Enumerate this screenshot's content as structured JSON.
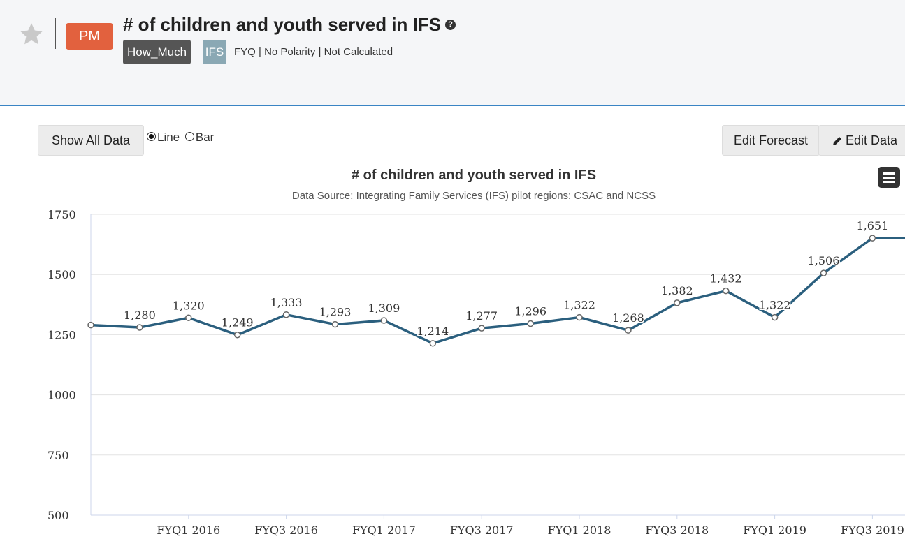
{
  "header": {
    "pm_badge": "PM",
    "title": "# of children and youth served in IFS",
    "tag_how_much": "How_Much",
    "tag_ifs": "IFS",
    "meta": "FYQ | No Polarity | Not Calculated"
  },
  "toolbar": {
    "show_all_label": "Show All Data",
    "radio_line": "Line",
    "radio_bar": "Bar",
    "selected": "Line",
    "edit_forecast_label": "Edit Forecast",
    "edit_data_label": "Edit Data"
  },
  "chart_data": {
    "type": "line",
    "title": "# of children and youth served in IFS",
    "subtitle": "Data Source: Integrating Family Services (IFS) pilot regions: CSAC and NCSS",
    "x_tick_labels": [
      "FYQ1 2016",
      "FYQ3 2016",
      "FYQ1 2017",
      "FYQ3 2017",
      "FYQ1 2018",
      "FYQ3 2018",
      "FYQ1 2019",
      "FYQ3 2019"
    ],
    "y_ticks": [
      500,
      750,
      1000,
      1250,
      1500,
      1750
    ],
    "ylim": [
      500,
      1750
    ],
    "grid": true,
    "color": "#2b5f7e",
    "series": [
      {
        "x": [
          "FYQ3 2015",
          "FYQ4 2015",
          "FYQ1 2016",
          "FYQ2 2016",
          "FYQ3 2016",
          "FYQ4 2016",
          "FYQ1 2017",
          "FYQ2 2017",
          "FYQ3 2017",
          "FYQ4 2017",
          "FYQ1 2018",
          "FYQ2 2018",
          "FYQ3 2018",
          "FYQ4 2018",
          "FYQ1 2019",
          "FYQ2 2019",
          "FYQ3 2019",
          "FYQ4 2019"
        ],
        "values": [
          1290,
          1280,
          1320,
          1249,
          1333,
          1293,
          1309,
          1214,
          1277,
          1296,
          1322,
          1268,
          1382,
          1432,
          1322,
          1506,
          1651,
          1651
        ],
        "data_labels": [
          "",
          "1,280",
          "1,320",
          "1,249",
          "1,333",
          "1,293",
          "1,309",
          "1,214",
          "1,277",
          "1,296",
          "1,322",
          "1,268",
          "1,382",
          "1,432",
          "1,322",
          "1,506",
          "1,651",
          ""
        ]
      }
    ]
  }
}
